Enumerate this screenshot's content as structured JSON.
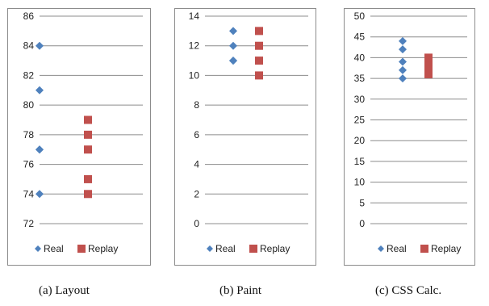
{
  "chart_data": [
    {
      "type": "scatter",
      "caption": "(a) Layout",
      "ylim": [
        72,
        86
      ],
      "ytick_step": 2,
      "ytick_labels": [
        "72",
        "74",
        "76",
        "78",
        "80",
        "82",
        "84",
        "86"
      ],
      "grid": true,
      "legend": "bottom",
      "series": [
        {
          "name": "Real",
          "marker": "diamond",
          "color": "#4f81bd",
          "values": [
            84,
            81,
            77,
            77,
            74
          ]
        },
        {
          "name": "Replay",
          "marker": "square",
          "color": "#c0504d",
          "values": [
            79,
            78,
            77,
            75,
            74
          ]
        }
      ]
    },
    {
      "type": "scatter",
      "caption": "(b) Paint",
      "ylim": [
        0,
        14
      ],
      "ytick_step": 2,
      "ytick_labels": [
        "0",
        "2",
        "4",
        "6",
        "8",
        "10",
        "12",
        "14"
      ],
      "grid": true,
      "legend": "bottom",
      "series": [
        {
          "name": "Real",
          "marker": "diamond",
          "color": "#4f81bd",
          "values": [
            13,
            12,
            11,
            11
          ]
        },
        {
          "name": "Replay",
          "marker": "square",
          "color": "#c0504d",
          "values": [
            13,
            12,
            11,
            10
          ]
        }
      ]
    },
    {
      "type": "scatter",
      "caption": "(c) CSS Calc.",
      "ylim": [
        0,
        50
      ],
      "ytick_step": 5,
      "ytick_labels": [
        "0",
        "5",
        "10",
        "15",
        "20",
        "25",
        "30",
        "35",
        "40",
        "45",
        "50"
      ],
      "grid": true,
      "legend": "bottom",
      "series": [
        {
          "name": "Real",
          "marker": "diamond",
          "color": "#4f81bd",
          "values": [
            44,
            42,
            39,
            37,
            35
          ]
        },
        {
          "name": "Replay",
          "marker": "square",
          "color": "#c0504d",
          "values": [
            40,
            39,
            38,
            37,
            36
          ]
        }
      ]
    }
  ]
}
